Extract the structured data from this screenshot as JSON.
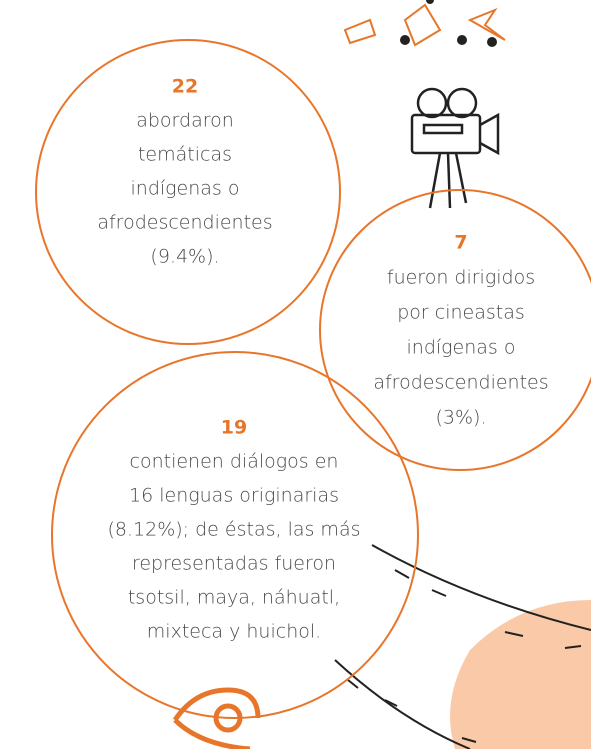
{
  "circles": [
    {
      "number": "22",
      "lines": [
        "abordaron",
        "temáticas",
        "indígenas o",
        "afrodescendientes",
        "(9.4%)."
      ]
    },
    {
      "number": "7",
      "lines": [
        "fueron dirigidos",
        "por cineastas",
        "indígenas o",
        "afrodescendientes",
        "(3%)."
      ]
    },
    {
      "number": "19",
      "lines": [
        "contienen diálogos en",
        "16 lenguas originarias",
        "(8.12%); de éstas, las más",
        "representadas fueron",
        "tsotsil, maya, náhuatl,",
        "mixteca y huichol."
      ]
    }
  ]
}
